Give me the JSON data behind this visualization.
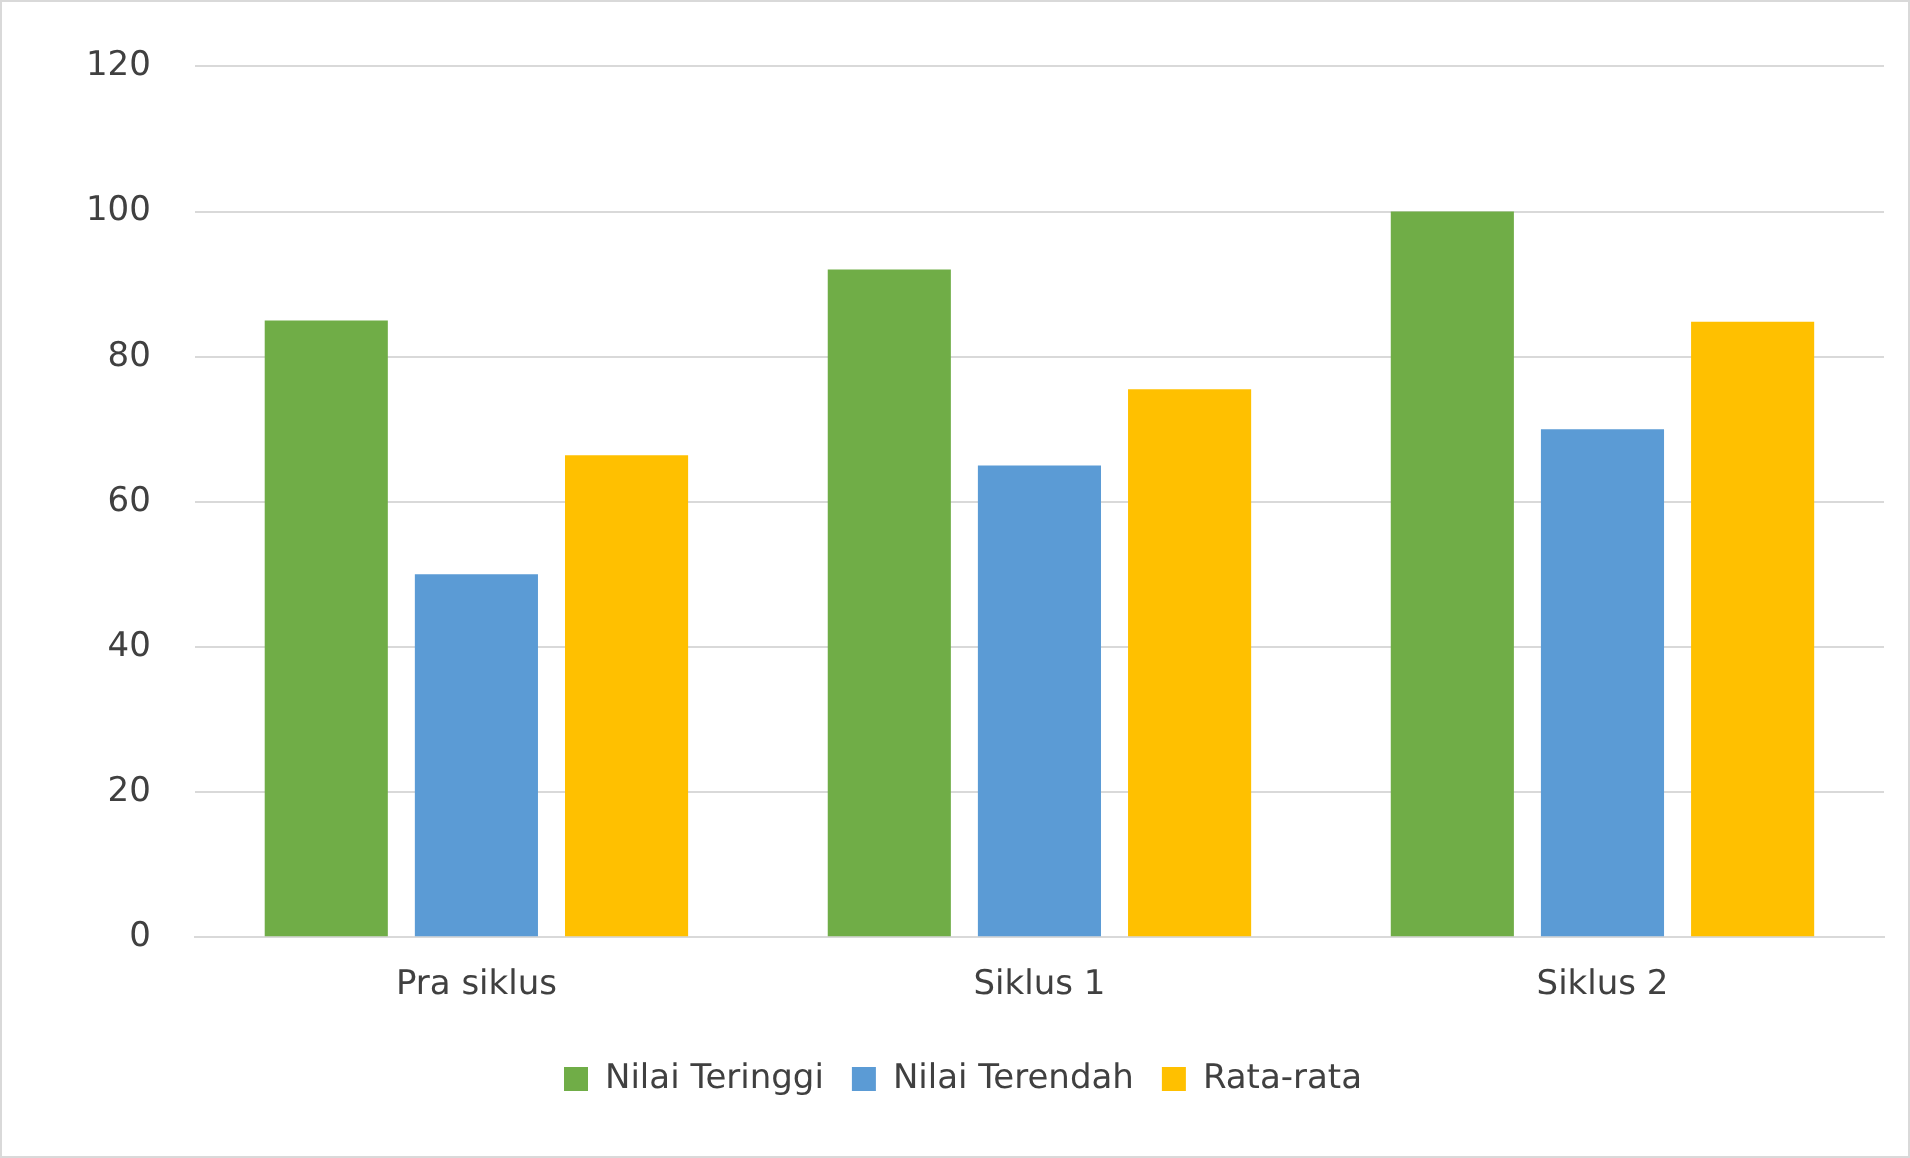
{
  "chart_data": {
    "type": "bar",
    "categories": [
      "Pra siklus",
      "Siklus 1",
      "Siklus 2"
    ],
    "series": [
      {
        "name": "Nilai Teringgi",
        "color": "#70ad47",
        "values": [
          85,
          92,
          100
        ]
      },
      {
        "name": "Nilai Terendah",
        "color": "#5b9bd5",
        "values": [
          50,
          65,
          70
        ]
      },
      {
        "name": "Rata-rata",
        "color": "#ffc000",
        "values": [
          66.4,
          75.5,
          84.8
        ]
      }
    ],
    "ylim": [
      0,
      120
    ],
    "yticks": [
      0,
      20,
      40,
      60,
      80,
      100,
      120
    ],
    "grid": "y",
    "legend": "bottom"
  }
}
